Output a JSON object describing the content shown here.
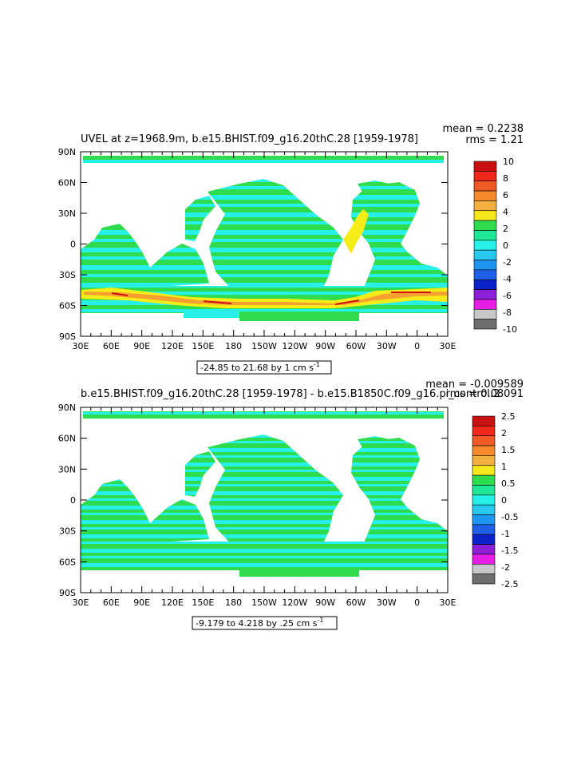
{
  "colors": {
    "ocean_green": "#2edc4e",
    "ocean_cyan": "#26f0e8",
    "land": "#ffffff",
    "jet_yellow": "#f5ec18",
    "jet_orange": "#f5a030",
    "jet_red": "#d01010"
  },
  "panels": [
    {
      "title": "UVEL at z=1968.9m, b.e15.BHIST.f09_g16.20thC.28 [1959-1978]",
      "mean": "mean = 0.2238",
      "rms": "rms = 1.21",
      "info": "-24.85 to 21.68 by 1 cm s",
      "info_sup": "-1",
      "colorbar_labels": [
        "10",
        "8",
        "6",
        "4",
        "2",
        "0",
        "-2",
        "-4",
        "-6",
        "-8",
        "-10"
      ],
      "colorbar_colors": [
        "#c81010",
        "#f0281a",
        "#f05a24",
        "#f58a2c",
        "#f5b040",
        "#f5e81c",
        "#2edc4e",
        "#1ee896",
        "#26f0e8",
        "#28c8f0",
        "#1e96f0",
        "#2060e8",
        "#0a22c8",
        "#8c1ed8",
        "#e61ee6",
        "#c8c8c8",
        "#6e6e6e"
      ],
      "lat_labels": [
        "90N",
        "60N",
        "30N",
        "0",
        "30S",
        "60S",
        "90S"
      ],
      "lon_labels": [
        "30E",
        "60E",
        "90E",
        "120E",
        "150E",
        "180",
        "150W",
        "120W",
        "90W",
        "60W",
        "30W",
        "0",
        "30E"
      ]
    },
    {
      "title": "b.e15.BHIST.f09_g16.20thC.28 [1959-1978] - b.e15.B1850C.f09_g16.pi_control.2",
      "mean": "mean = -0.009589",
      "rms": "rms = 0.08091",
      "info": "-9.179 to 4.218 by .25 cm s",
      "info_sup": "-1",
      "colorbar_labels": [
        "2.5",
        "2",
        "1.5",
        "1",
        "0.5",
        "0",
        "-0.5",
        "-1",
        "-1.5",
        "-2",
        "-2.5"
      ],
      "colorbar_colors": [
        "#c81010",
        "#f0281a",
        "#f05a24",
        "#f58a2c",
        "#f5b040",
        "#f5e81c",
        "#2edc4e",
        "#1ee896",
        "#26f0e8",
        "#28c8f0",
        "#1e96f0",
        "#2060e8",
        "#0a22c8",
        "#8c1ed8",
        "#e61ee6",
        "#c8c8c8",
        "#6e6e6e"
      ],
      "lat_labels": [
        "90N",
        "60N",
        "30N",
        "0",
        "30S",
        "60S",
        "90S"
      ],
      "lon_labels": [
        "30E",
        "60E",
        "90E",
        "120E",
        "150E",
        "180",
        "150W",
        "120W",
        "90W",
        "60W",
        "30W",
        "0",
        "30E"
      ]
    }
  ]
}
